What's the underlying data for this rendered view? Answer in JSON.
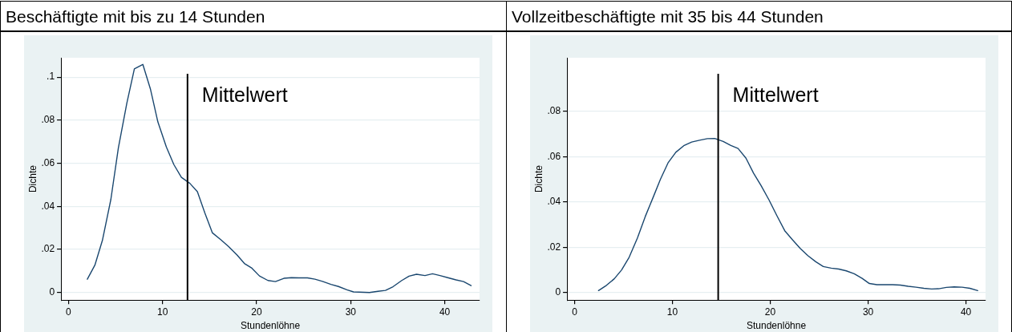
{
  "chart_data": [
    {
      "type": "line",
      "title": "Beschäftigte mit bis zu 14 Stunden",
      "xlabel": "Stundenlöhne",
      "ylabel": "Dichte",
      "marker": "none",
      "grid": "y",
      "xlim": [
        -0.8,
        43.7
      ],
      "xticks": [
        0,
        10,
        20,
        30,
        40
      ],
      "ylim": [
        -0.0035,
        0.109
      ],
      "yticks": [
        {
          "value": 0,
          "label": "0"
        },
        {
          "value": 0.02,
          "label": ".02"
        },
        {
          "value": 0.04,
          "label": ".04"
        },
        {
          "value": 0.06,
          "label": ".06"
        },
        {
          "value": 0.08,
          "label": ".08"
        },
        {
          "value": 0.1,
          "label": ".1"
        }
      ],
      "ref_lines": [
        {
          "axis": "x",
          "value": 12.65,
          "label": "Mittelwert",
          "color": "#000000"
        }
      ],
      "series": [
        {
          "color": "#1a476f",
          "x": [
            2.0,
            2.8,
            3.6,
            4.5,
            5.3,
            6.2,
            7.0,
            7.9,
            8.7,
            9.5,
            10.4,
            11.2,
            12.0,
            12.9,
            13.7,
            14.5,
            15.3,
            16.2,
            17.0,
            17.9,
            18.7,
            19.5,
            20.3,
            21.2,
            22.0,
            22.9,
            23.7,
            24.5,
            25.4,
            26.2,
            27.0,
            27.9,
            28.7,
            29.6,
            30.3,
            32.0,
            32.9,
            33.7,
            34.5,
            35.4,
            36.2,
            37.0,
            37.9,
            38.7,
            39.5,
            40.4,
            41.2,
            42.0,
            42.8
          ],
          "values": [
            0.0062,
            0.0127,
            0.0242,
            0.0432,
            0.0672,
            0.0879,
            0.1038,
            0.1059,
            0.0946,
            0.0792,
            0.0676,
            0.0594,
            0.0535,
            0.0507,
            0.0468,
            0.0369,
            0.0277,
            0.0245,
            0.0214,
            0.0175,
            0.0135,
            0.0113,
            0.0077,
            0.0056,
            0.0051,
            0.0066,
            0.0069,
            0.0068,
            0.0068,
            0.0062,
            0.0052,
            0.0038,
            0.0028,
            0.0013,
            0.0003,
            0.0,
            0.0006,
            0.001,
            0.0027,
            0.0055,
            0.0076,
            0.0085,
            0.0079,
            0.0087,
            0.0079,
            0.0068,
            0.0059,
            0.0051,
            0.0032
          ]
        }
      ]
    },
    {
      "type": "line",
      "title": "Vollzeitbeschäftigte mit 35 bis 44 Stunden",
      "xlabel": "Stundenlöhne",
      "ylabel": "Dichte",
      "marker": "none",
      "grid": "y",
      "xlim": [
        -0.77,
        42.0
      ],
      "xticks": [
        0,
        10,
        20,
        30,
        40
      ],
      "ylim": [
        -0.0033,
        0.1036
      ],
      "yticks": [
        {
          "value": 0,
          "label": "0"
        },
        {
          "value": 0.02,
          "label": ".02"
        },
        {
          "value": 0.04,
          "label": ".04"
        },
        {
          "value": 0.06,
          "label": ".06"
        },
        {
          "value": 0.08,
          "label": ".08"
        }
      ],
      "ref_lines": [
        {
          "axis": "x",
          "value": 14.68,
          "label": "Mittelwert",
          "color": "#000000"
        }
      ],
      "series": [
        {
          "color": "#1a476f",
          "x": [
            2.45,
            3.26,
            4.06,
            4.81,
            5.58,
            6.42,
            7.23,
            8.03,
            8.77,
            9.55,
            10.35,
            11.16,
            11.97,
            12.77,
            13.58,
            14.32,
            15.19,
            15.97,
            16.71,
            17.52,
            18.29,
            19.06,
            19.87,
            20.68,
            21.48,
            22.29,
            23.06,
            23.84,
            24.65,
            25.42,
            26.23,
            27.0,
            27.77,
            28.58,
            29.39,
            30.13,
            30.9,
            31.7,
            32.5,
            33.3,
            34.1,
            34.9,
            35.7,
            36.5,
            37.2,
            38.0,
            38.8,
            39.6,
            40.4,
            41.2
          ],
          "values": [
            0.0009,
            0.0032,
            0.0061,
            0.01,
            0.0156,
            0.024,
            0.0336,
            0.042,
            0.0499,
            0.0572,
            0.0619,
            0.0648,
            0.0664,
            0.0672,
            0.0679,
            0.068,
            0.0667,
            0.0649,
            0.0636,
            0.0593,
            0.0527,
            0.0472,
            0.0409,
            0.0339,
            0.0273,
            0.0232,
            0.0195,
            0.0163,
            0.0136,
            0.0115,
            0.0108,
            0.0104,
            0.0096,
            0.0083,
            0.0063,
            0.004,
            0.0035,
            0.0035,
            0.0035,
            0.0033,
            0.0028,
            0.0024,
            0.0019,
            0.0016,
            0.0017,
            0.0023,
            0.0025,
            0.0024,
            0.0019,
            0.0009
          ]
        }
      ]
    }
  ]
}
